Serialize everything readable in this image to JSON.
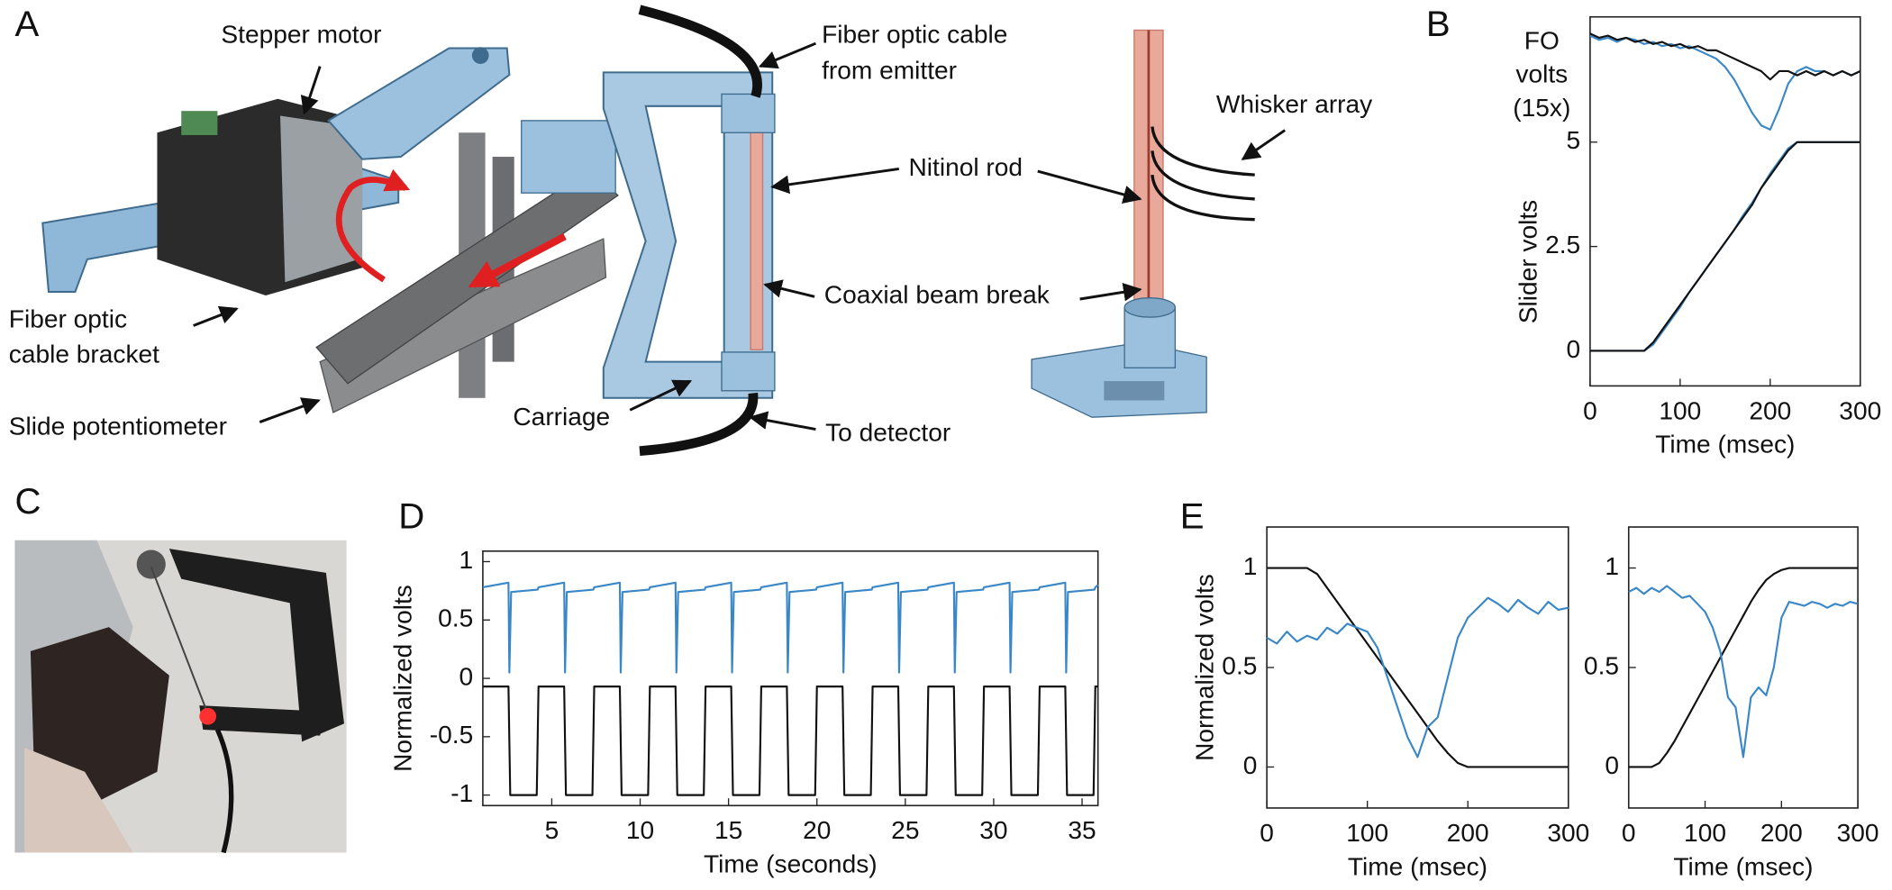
{
  "panel_letters": [
    "A",
    "B",
    "C",
    "D",
    "E"
  ],
  "diagram": {
    "labels": [
      [
        "Stepper motor"
      ],
      [
        "Fiber optic cable",
        "from emitter"
      ],
      [
        "Whisker array"
      ],
      [
        "Nitinol rod"
      ],
      [
        "Coaxial beam break"
      ],
      [
        "Fiber optic",
        "cable bracket"
      ],
      [
        "Slide potentiometer"
      ],
      [
        "Carriage"
      ],
      [
        "To detector"
      ]
    ]
  },
  "chart_data": [
    {
      "type": "line",
      "annotation": [
        "FO",
        "volts",
        "(15x)"
      ],
      "ylabel": "Slider volts",
      "xlabel": "Time (msec)",
      "x": [
        0,
        10,
        20,
        30,
        40,
        50,
        60,
        70,
        80,
        90,
        100,
        110,
        120,
        130,
        140,
        150,
        160,
        170,
        180,
        190,
        200,
        210,
        220,
        230,
        240,
        250,
        260,
        270,
        280,
        290,
        300
      ],
      "xlim": [
        0,
        300
      ],
      "xticks": [
        0,
        100,
        200,
        300
      ],
      "ylim": [
        -0.84,
        8.0
      ],
      "yticks": [
        0,
        2.5,
        5
      ],
      "series": [
        {
          "color": "#3a87c8",
          "values": [
            7.55,
            7.45,
            7.5,
            7.4,
            7.5,
            7.45,
            7.35,
            7.4,
            7.3,
            7.35,
            7.25,
            7.3,
            7.2,
            7.1,
            7.0,
            6.8,
            6.5,
            6.1,
            5.7,
            5.4,
            5.3,
            5.8,
            6.4,
            6.7,
            6.8,
            6.7,
            6.7,
            6.6,
            6.7,
            6.6,
            6.7
          ]
        },
        {
          "color": "#111111",
          "values": [
            7.6,
            7.5,
            7.55,
            7.45,
            7.5,
            7.4,
            7.45,
            7.35,
            7.4,
            7.3,
            7.35,
            7.25,
            7.3,
            7.2,
            7.2,
            7.1,
            7.0,
            6.9,
            6.8,
            6.7,
            6.5,
            6.7,
            6.7,
            6.6,
            6.7,
            6.6,
            6.7,
            6.6,
            6.7,
            6.6,
            6.7
          ]
        },
        {
          "color": "#3a87c8",
          "values": [
            0,
            0,
            0,
            0,
            0,
            0,
            0,
            0.15,
            0.45,
            0.75,
            1.05,
            1.4,
            1.7,
            2.0,
            2.3,
            2.6,
            2.9,
            3.25,
            3.55,
            3.9,
            4.25,
            4.55,
            4.85,
            5,
            5,
            5,
            5,
            5,
            5,
            5,
            5
          ]
        },
        {
          "color": "#111111",
          "values": [
            0,
            0,
            0,
            0,
            0,
            0,
            0,
            0.2,
            0.5,
            0.8,
            1.1,
            1.4,
            1.7,
            2.0,
            2.3,
            2.6,
            2.9,
            3.2,
            3.5,
            3.9,
            4.2,
            4.5,
            4.8,
            5,
            5,
            5,
            5,
            5,
            5,
            5,
            5
          ]
        }
      ]
    },
    {
      "type": "line",
      "ylabel": "Normalized volts",
      "xlabel": "Time (seconds)",
      "xlim": [
        1.1,
        35.9
      ],
      "xticks": [
        5,
        10,
        15,
        20,
        25,
        30,
        35
      ],
      "ylim": [
        -1.09,
        1.09
      ],
      "yticks": [
        1,
        0.5,
        0,
        -0.5,
        -1
      ],
      "series": [
        {
          "color": "#3a87c8",
          "x": [
            1.1,
            2.55,
            2.6,
            2.7,
            4.2,
            4.25,
            5.7,
            5.75,
            5.85,
            7.35,
            7.4,
            8.85,
            8.9,
            9.0,
            10.5,
            10.55,
            12.0,
            12.05,
            12.15,
            13.65,
            13.7,
            15.15,
            15.2,
            15.3,
            16.8,
            16.85,
            18.3,
            18.35,
            18.45,
            19.95,
            20.0,
            21.45,
            21.5,
            21.6,
            23.1,
            23.15,
            24.6,
            24.65,
            24.75,
            26.25,
            26.3,
            27.75,
            27.8,
            27.9,
            29.4,
            29.45,
            30.9,
            30.95,
            31.05,
            32.55,
            32.6,
            34.05,
            34.1,
            34.2,
            35.7,
            35.75,
            35.9
          ],
          "values": [
            0.78,
            0.82,
            0.05,
            0.74,
            0.76,
            0.78,
            0.82,
            0.05,
            0.74,
            0.76,
            0.78,
            0.82,
            0.05,
            0.74,
            0.76,
            0.78,
            0.82,
            0.05,
            0.74,
            0.76,
            0.78,
            0.82,
            0.05,
            0.74,
            0.76,
            0.78,
            0.82,
            0.05,
            0.74,
            0.76,
            0.78,
            0.82,
            0.05,
            0.74,
            0.76,
            0.78,
            0.82,
            0.05,
            0.74,
            0.76,
            0.78,
            0.82,
            0.05,
            0.74,
            0.76,
            0.78,
            0.82,
            0.05,
            0.74,
            0.76,
            0.78,
            0.82,
            0.05,
            0.74,
            0.76,
            0.78,
            0.8
          ]
        },
        {
          "color": "#111111",
          "x": [
            1.1,
            2.55,
            2.65,
            4.15,
            4.25,
            5.7,
            5.8,
            7.3,
            7.4,
            8.85,
            8.95,
            10.45,
            10.55,
            12.0,
            12.1,
            13.6,
            13.7,
            15.15,
            15.25,
            16.75,
            16.85,
            18.3,
            18.4,
            19.9,
            20.0,
            21.45,
            21.55,
            23.05,
            23.15,
            24.6,
            24.7,
            26.2,
            26.3,
            27.75,
            27.85,
            29.35,
            29.45,
            30.9,
            31.0,
            32.5,
            32.6,
            34.05,
            34.15,
            35.65,
            35.75,
            35.9
          ],
          "values": [
            -0.07,
            -0.07,
            -1,
            -1,
            -0.07,
            -0.07,
            -1,
            -1,
            -0.07,
            -0.07,
            -1,
            -1,
            -0.07,
            -0.07,
            -1,
            -1,
            -0.07,
            -0.07,
            -1,
            -1,
            -0.07,
            -0.07,
            -1,
            -1,
            -0.07,
            -0.07,
            -1,
            -1,
            -0.07,
            -0.07,
            -1,
            -1,
            -0.07,
            -0.07,
            -1,
            -1,
            -0.07,
            -0.07,
            -1,
            -1,
            -0.07,
            -0.07,
            -1,
            -1,
            -0.07,
            -0.07
          ]
        }
      ]
    },
    {
      "type": "line",
      "ylabel": "Normalized volts",
      "xlabel": "Time (msec)",
      "x": [
        0,
        10,
        20,
        30,
        40,
        50,
        60,
        70,
        80,
        90,
        100,
        110,
        120,
        130,
        140,
        150,
        160,
        170,
        180,
        190,
        200,
        210,
        220,
        230,
        240,
        250,
        260,
        270,
        280,
        290,
        300
      ],
      "xlim": [
        0,
        300
      ],
      "xticks": [
        0,
        100,
        200,
        300
      ],
      "ylim": [
        -0.206,
        1.206
      ],
      "yticks": [
        0,
        0.5,
        1
      ],
      "series": [
        {
          "color": "#111111",
          "values": [
            1,
            1,
            1,
            1,
            1,
            0.97,
            0.9,
            0.83,
            0.76,
            0.69,
            0.62,
            0.55,
            0.48,
            0.41,
            0.34,
            0.27,
            0.2,
            0.13,
            0.07,
            0.02,
            0,
            0,
            0,
            0,
            0,
            0,
            0,
            0,
            0,
            0,
            0
          ]
        },
        {
          "color": "#3a87c8",
          "values": [
            0.65,
            0.62,
            0.68,
            0.63,
            0.66,
            0.64,
            0.7,
            0.67,
            0.72,
            0.7,
            0.68,
            0.6,
            0.45,
            0.3,
            0.15,
            0.05,
            0.2,
            0.25,
            0.45,
            0.65,
            0.75,
            0.8,
            0.85,
            0.82,
            0.78,
            0.84,
            0.8,
            0.77,
            0.83,
            0.79,
            0.8
          ]
        }
      ]
    },
    {
      "type": "line",
      "xlabel": "Time (msec)",
      "x": [
        0,
        10,
        20,
        30,
        40,
        50,
        60,
        70,
        80,
        90,
        100,
        110,
        120,
        130,
        140,
        150,
        160,
        170,
        180,
        190,
        200,
        210,
        220,
        230,
        240,
        250,
        260,
        270,
        280,
        290,
        300
      ],
      "xlim": [
        0,
        300
      ],
      "xticks": [
        0,
        100,
        200,
        300
      ],
      "ylim": [
        -0.206,
        1.206
      ],
      "yticks": [
        0,
        0.5,
        1
      ],
      "series": [
        {
          "color": "#111111",
          "values": [
            0,
            0,
            0,
            0,
            0.02,
            0.07,
            0.13,
            0.2,
            0.27,
            0.34,
            0.41,
            0.48,
            0.55,
            0.62,
            0.69,
            0.76,
            0.83,
            0.89,
            0.94,
            0.97,
            0.99,
            1,
            1,
            1,
            1,
            1,
            1,
            1,
            1,
            1,
            1
          ]
        },
        {
          "color": "#3a87c8",
          "values": [
            0.88,
            0.9,
            0.87,
            0.9,
            0.88,
            0.91,
            0.88,
            0.85,
            0.86,
            0.82,
            0.78,
            0.7,
            0.58,
            0.35,
            0.3,
            0.05,
            0.35,
            0.4,
            0.36,
            0.5,
            0.75,
            0.83,
            0.82,
            0.81,
            0.83,
            0.82,
            0.8,
            0.82,
            0.81,
            0.83,
            0.82
          ]
        }
      ]
    }
  ]
}
